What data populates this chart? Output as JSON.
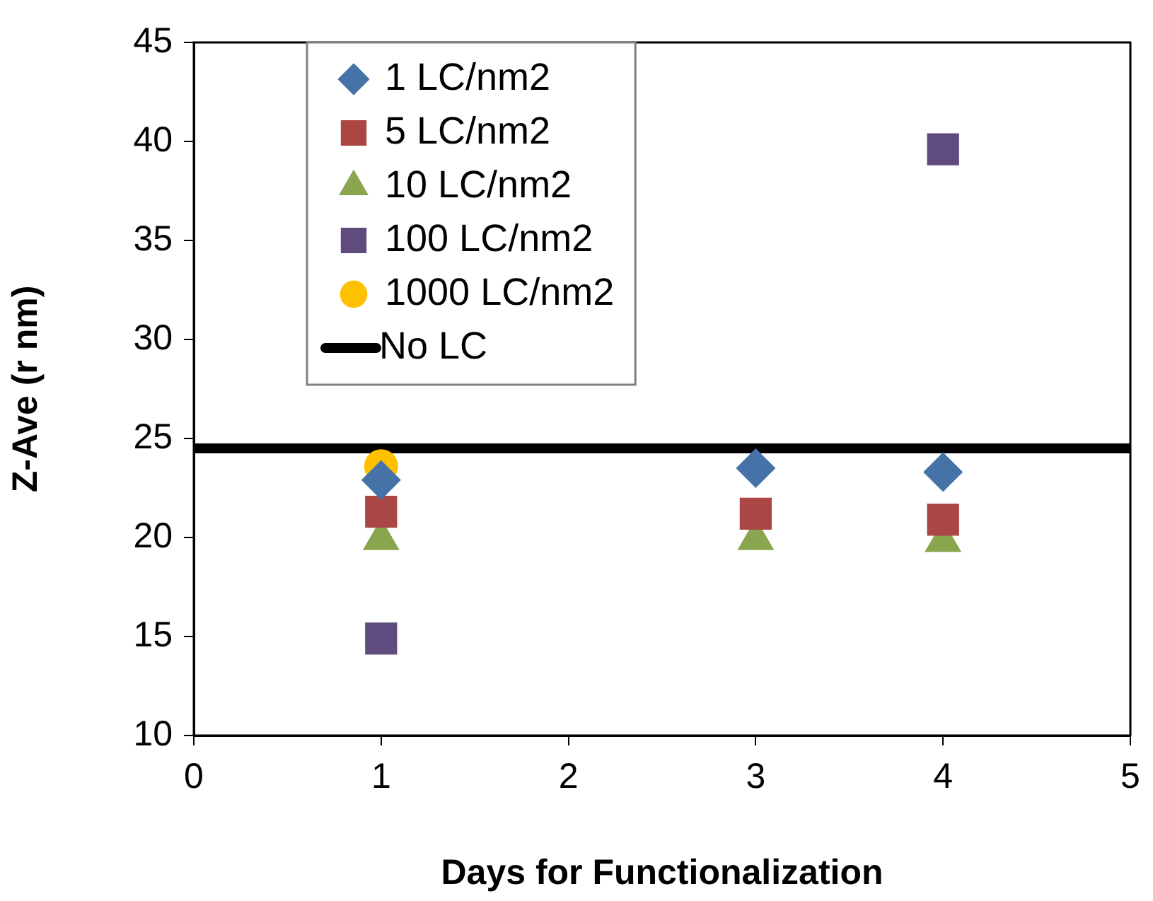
{
  "chart_data": {
    "type": "scatter",
    "xlabel": "Days for Functionalization",
    "ylabel": "Z-Ave (r nm)",
    "xlim": [
      0,
      5
    ],
    "xticks": [
      0,
      1,
      2,
      3,
      4,
      5
    ],
    "ylim": [
      10,
      45
    ],
    "yticks": [
      10,
      15,
      20,
      25,
      30,
      35,
      40,
      45
    ],
    "grid": false,
    "legend": "top left",
    "series": [
      {
        "name": "1 LC/nm2",
        "color": "#4572a7",
        "marker": "diamond",
        "x": [
          1,
          3,
          4
        ],
        "values": [
          22.9,
          23.5,
          23.3
        ]
      },
      {
        "name": "5 LC/nm2",
        "color": "#aa4643",
        "marker": "square",
        "x": [
          1,
          3,
          4
        ],
        "values": [
          21.3,
          21.2,
          20.9
        ]
      },
      {
        "name": "10 LC/nm2",
        "color": "#89a54e",
        "marker": "triangle",
        "x": [
          1,
          3,
          4
        ],
        "values": [
          19.9,
          19.9,
          19.8
        ]
      },
      {
        "name": "100 LC/nm2",
        "color": "#5f4b7d",
        "marker": "square",
        "x": [
          1,
          4
        ],
        "values": [
          14.9,
          39.6
        ]
      },
      {
        "name": "1000 LC/nm2",
        "color": "#ffc000",
        "marker": "circle",
        "x": [
          1
        ],
        "values": [
          23.6
        ]
      },
      {
        "name": "No LC",
        "type": "line",
        "color": "#000000",
        "marker": "none",
        "line_style": "solid",
        "x": [
          0,
          5
        ],
        "values": [
          24.5,
          24.5
        ]
      }
    ]
  }
}
